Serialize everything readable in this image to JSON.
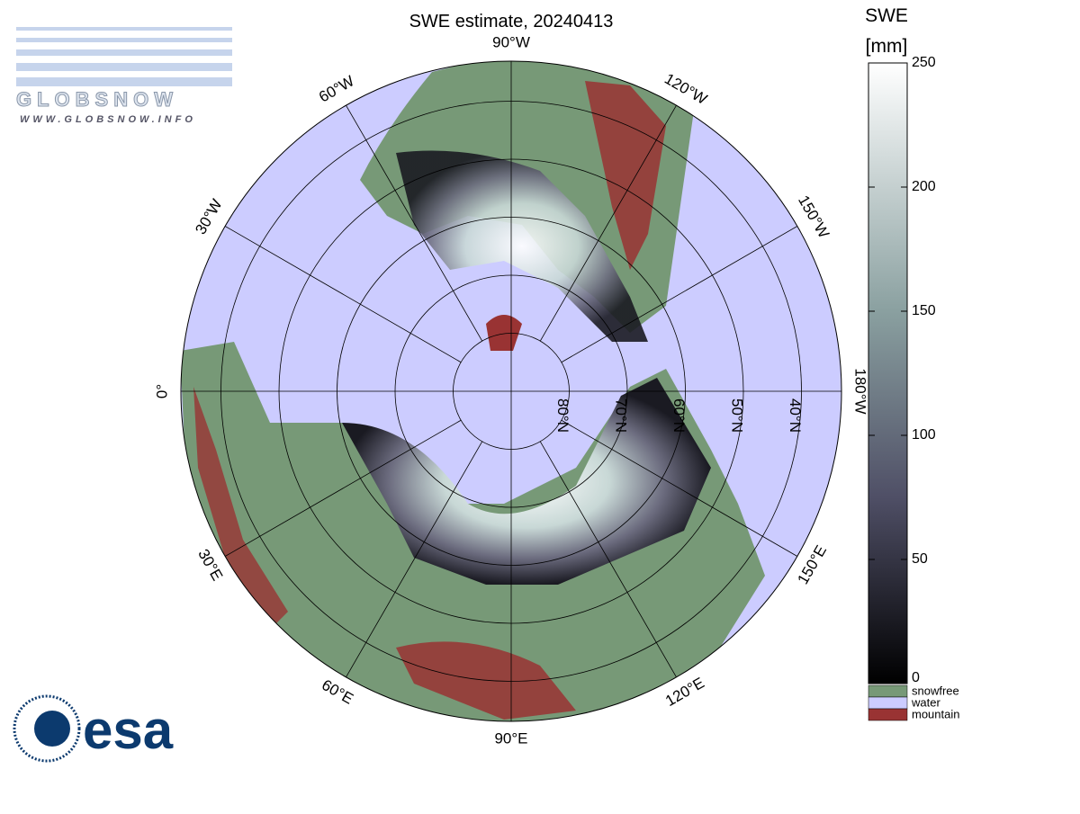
{
  "title": "SWE estimate, 20240413",
  "logo": {
    "name": "GLOBSNOW",
    "url": "WWW.GLOBSNOW.INFO"
  },
  "agency": "esa",
  "map": {
    "meridians": [
      {
        "lon": -90,
        "label": "90°W"
      },
      {
        "lon": -120,
        "label": "120°W"
      },
      {
        "lon": -150,
        "label": "150°W"
      },
      {
        "lon": -180,
        "label": "180°W"
      },
      {
        "lon": 150,
        "label": "150°E"
      },
      {
        "lon": 120,
        "label": "120°E"
      },
      {
        "lon": 90,
        "label": "90°E"
      },
      {
        "lon": 60,
        "label": "60°E"
      },
      {
        "lon": 30,
        "label": "30°E"
      },
      {
        "lon": 0,
        "label": "0°"
      },
      {
        "lon": -30,
        "label": "30°W"
      },
      {
        "lon": -60,
        "label": "60°W"
      }
    ],
    "parallels": [
      {
        "lat": 80,
        "label": "80°N"
      },
      {
        "lat": 70,
        "label": "70°N"
      },
      {
        "lat": 60,
        "label": "60°N"
      },
      {
        "lat": 50,
        "label": "50°N"
      },
      {
        "lat": 40,
        "label": "40°N"
      }
    ]
  },
  "colorbar": {
    "title": "SWE",
    "unit": "[mm]",
    "lim": [
      0,
      250
    ],
    "ticks": [
      0,
      50,
      100,
      150,
      200,
      250
    ],
    "legend": [
      "snowfree",
      "water",
      "mountain"
    ],
    "legend_colors": [
      "#779977",
      "#ccccff",
      "#993333"
    ]
  }
}
